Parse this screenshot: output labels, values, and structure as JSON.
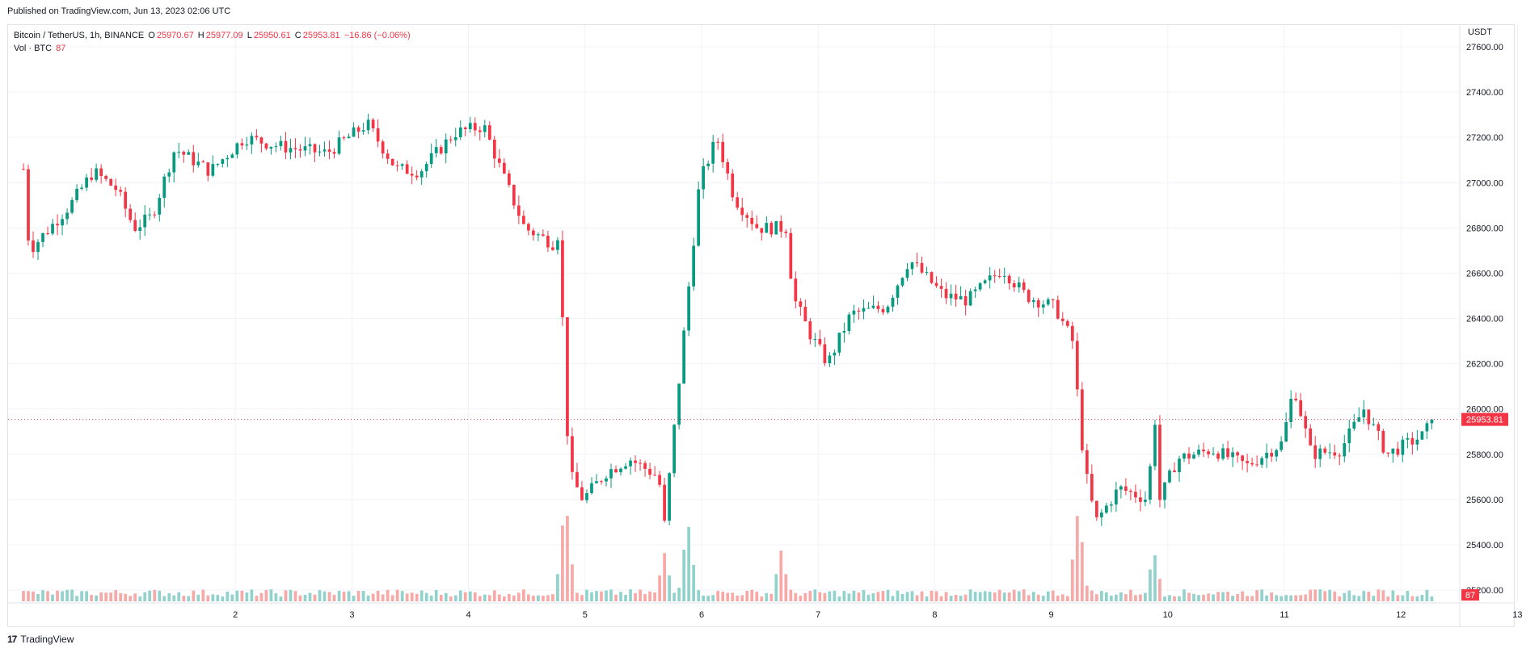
{
  "header": {
    "published": "Published on TradingView.com, Jun 13, 2023 02:06 UTC"
  },
  "legend": {
    "symbol": "Bitcoin / TetherUS, 1h, BINANCE",
    "o_label": "O",
    "o_value": "25970.67",
    "h_label": "H",
    "h_value": "25977.09",
    "l_label": "L",
    "l_value": "25950.61",
    "c_label": "C",
    "c_value": "25953.81",
    "change": "−16.86 (−0.06%)",
    "vol_label": "Vol · BTC",
    "vol_value": "87"
  },
  "axis": {
    "currency": "USDT",
    "last_price_label": "25953.81",
    "last_volume_label": "87"
  },
  "footer": {
    "brand": "TradingView",
    "logo_glyph": "17"
  },
  "colors": {
    "up": "#089981",
    "down": "#f23645",
    "up_volume": "#92d2cc",
    "down_volume": "#f7a9a7",
    "grid": "#f0f3fa"
  },
  "chart_data": {
    "type": "candlestick",
    "title": "Bitcoin / TetherUS, 1h, BINANCE",
    "ylabel": "USDT",
    "ylim": [
      25150,
      27650
    ],
    "y_ticks": [
      27600,
      27400,
      27200,
      27000,
      26800,
      26600,
      26400,
      26200,
      26000,
      25800,
      25600,
      25400,
      25200
    ],
    "y_tick_labels": [
      "27600.00",
      "27400.00",
      "27200.00",
      "27000.00",
      "26800.00",
      "26600.00",
      "26400.00",
      "26200.00",
      "26000.00",
      "25800.00",
      "25600.00",
      "25400.00",
      "25200.00"
    ],
    "x_ticks": [
      "2",
      "3",
      "4",
      "5",
      "6",
      "7",
      "8",
      "9",
      "10",
      "11",
      "12",
      "13"
    ],
    "x_tick_day_index": [
      1,
      2,
      3,
      4,
      5,
      6,
      7,
      8,
      9,
      10,
      11,
      12
    ],
    "interval": "1h",
    "grid": true,
    "last_price": 25953.81,
    "key_closes": [
      {
        "day_offset": 0.0,
        "price": 27060
      },
      {
        "day_offset": 0.05,
        "price": 26700
      },
      {
        "day_offset": 0.4,
        "price": 26900
      },
      {
        "day_offset": 0.6,
        "price": 27050
      },
      {
        "day_offset": 0.8,
        "price": 26970
      },
      {
        "day_offset": 0.95,
        "price": 26800
      },
      {
        "day_offset": 1.1,
        "price": 26850
      },
      {
        "day_offset": 1.3,
        "price": 27150
      },
      {
        "day_offset": 1.6,
        "price": 27050
      },
      {
        "day_offset": 1.9,
        "price": 27200
      },
      {
        "day_offset": 2.2,
        "price": 27160
      },
      {
        "day_offset": 2.6,
        "price": 27130
      },
      {
        "day_offset": 2.95,
        "price": 27260
      },
      {
        "day_offset": 3.2,
        "price": 27060
      },
      {
        "day_offset": 3.4,
        "price": 27050
      },
      {
        "day_offset": 3.7,
        "price": 27220
      },
      {
        "day_offset": 3.95,
        "price": 27250
      },
      {
        "day_offset": 4.1,
        "price": 27050
      },
      {
        "day_offset": 4.3,
        "price": 26800
      },
      {
        "day_offset": 4.55,
        "price": 26730
      },
      {
        "day_offset": 4.6,
        "price": 26790
      },
      {
        "day_offset": 4.65,
        "price": 26000
      },
      {
        "day_offset": 4.7,
        "price": 25700
      },
      {
        "day_offset": 4.8,
        "price": 25600
      },
      {
        "day_offset": 5.0,
        "price": 25720
      },
      {
        "day_offset": 5.2,
        "price": 25780
      },
      {
        "day_offset": 5.45,
        "price": 25700
      },
      {
        "day_offset": 5.5,
        "price": 25490
      },
      {
        "day_offset": 5.6,
        "price": 26000
      },
      {
        "day_offset": 5.7,
        "price": 26500
      },
      {
        "day_offset": 5.8,
        "price": 27000
      },
      {
        "day_offset": 5.95,
        "price": 27200
      },
      {
        "day_offset": 6.1,
        "price": 26930
      },
      {
        "day_offset": 6.3,
        "price": 26800
      },
      {
        "day_offset": 6.55,
        "price": 26800
      },
      {
        "day_offset": 6.6,
        "price": 26500
      },
      {
        "day_offset": 6.75,
        "price": 26330
      },
      {
        "day_offset": 6.9,
        "price": 26200
      },
      {
        "day_offset": 7.1,
        "price": 26420
      },
      {
        "day_offset": 7.4,
        "price": 26450
      },
      {
        "day_offset": 7.6,
        "price": 26660
      },
      {
        "day_offset": 7.9,
        "price": 26500
      },
      {
        "day_offset": 8.1,
        "price": 26480
      },
      {
        "day_offset": 8.4,
        "price": 26620
      },
      {
        "day_offset": 8.6,
        "price": 26500
      },
      {
        "day_offset": 8.85,
        "price": 26450
      },
      {
        "day_offset": 9.0,
        "price": 26300
      },
      {
        "day_offset": 9.1,
        "price": 25750
      },
      {
        "day_offset": 9.2,
        "price": 25500
      },
      {
        "day_offset": 9.4,
        "price": 25650
      },
      {
        "day_offset": 9.65,
        "price": 25600
      },
      {
        "day_offset": 9.7,
        "price": 26020
      },
      {
        "day_offset": 9.75,
        "price": 25600
      },
      {
        "day_offset": 9.9,
        "price": 25780
      },
      {
        "day_offset": 10.2,
        "price": 25820
      },
      {
        "day_offset": 10.5,
        "price": 25750
      },
      {
        "day_offset": 10.8,
        "price": 25850
      },
      {
        "day_offset": 10.9,
        "price": 26100
      },
      {
        "day_offset": 11.05,
        "price": 25800
      },
      {
        "day_offset": 11.3,
        "price": 25820
      },
      {
        "day_offset": 11.5,
        "price": 26000
      },
      {
        "day_offset": 11.7,
        "price": 25800
      },
      {
        "day_offset": 12.0,
        "price": 25880
      },
      {
        "day_offset": 12.1,
        "price": 25953.81
      }
    ],
    "volume_peaks": [
      {
        "day_offset": 4.65,
        "volume": 870
      },
      {
        "day_offset": 5.5,
        "volume": 400
      },
      {
        "day_offset": 5.7,
        "volume": 680
      },
      {
        "day_offset": 6.5,
        "volume": 420
      },
      {
        "day_offset": 9.05,
        "volume": 780
      },
      {
        "day_offset": 9.7,
        "volume": 420
      }
    ]
  }
}
